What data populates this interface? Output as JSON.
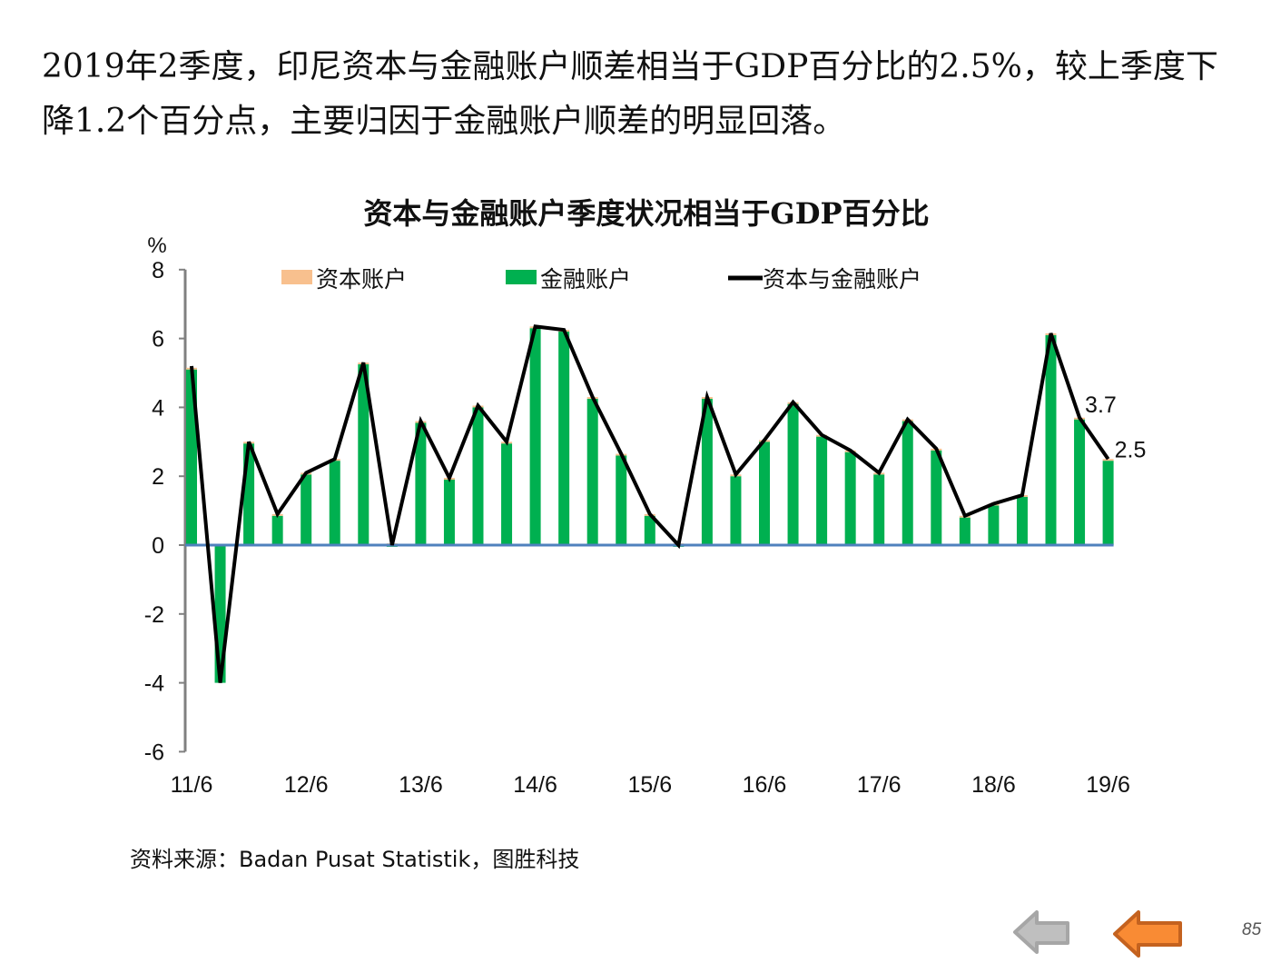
{
  "headline": "2019年2季度，印尼资本与金融账户顺差相当于GDP百分比的2.5%，较上季度下降1.2个百分点，主要归因于金融账户顺差的明显回落。",
  "source": "资料来源：Badan Pusat Statistik，图胜科技",
  "page_number": "85",
  "nav": {
    "prev_icon": "arrow-left-gray-icon",
    "back_icon": "arrow-left-orange-icon"
  },
  "colors": {
    "capital": "#F8C08E",
    "financial": "#00B050",
    "total": "#000000",
    "zero_line": "#4F81BD",
    "axis": "#808080"
  },
  "chart_data": {
    "type": "bar+line",
    "title": "资本与金融账户季度状况相当于GDP百分比",
    "ylabel": "%",
    "ylim": [
      -6,
      8
    ],
    "yticks": [
      8,
      6,
      4,
      2,
      0,
      -2,
      -4,
      -6
    ],
    "x_tick_labels": [
      "11/6",
      "12/6",
      "13/6",
      "14/6",
      "15/6",
      "16/6",
      "17/6",
      "18/6",
      "19/6"
    ],
    "categories": [
      "11/6",
      "11/9",
      "11/12",
      "12/3",
      "12/6",
      "12/9",
      "12/12",
      "13/3",
      "13/6",
      "13/9",
      "13/12",
      "14/3",
      "14/6",
      "14/9",
      "14/12",
      "15/3",
      "15/6",
      "15/9",
      "15/12",
      "16/3",
      "16/6",
      "16/9",
      "16/12",
      "17/3",
      "17/6",
      "17/9",
      "17/12",
      "18/3",
      "18/6",
      "18/9",
      "18/12",
      "19/3",
      "19/6"
    ],
    "legend_placement": "top",
    "series": [
      {
        "name": "资本账户",
        "kind": "stacked-bar",
        "values": [
          0.05,
          0.0,
          0.05,
          0.05,
          0.05,
          0.05,
          0.05,
          0.05,
          0.05,
          0.05,
          0.05,
          0.05,
          0.05,
          0.05,
          0.05,
          0.05,
          0.05,
          0.05,
          0.05,
          0.05,
          0.05,
          0.05,
          0.05,
          0.05,
          0.05,
          0.05,
          0.05,
          0.05,
          0.05,
          0.05,
          0.05,
          0.05,
          0.05
        ]
      },
      {
        "name": "金融账户",
        "kind": "stacked-bar",
        "values": [
          5.1,
          -4.0,
          2.95,
          0.85,
          2.05,
          2.45,
          5.25,
          -0.05,
          3.55,
          1.9,
          4.0,
          2.95,
          6.3,
          6.2,
          4.25,
          2.6,
          0.85,
          -0.05,
          4.25,
          2.0,
          3.0,
          4.1,
          3.15,
          2.7,
          2.05,
          3.6,
          2.75,
          0.8,
          1.15,
          1.4,
          6.1,
          3.65,
          2.45
        ]
      },
      {
        "name": "资本与金融账户",
        "kind": "line",
        "values": [
          5.2,
          -4.0,
          3.0,
          0.9,
          2.1,
          2.5,
          5.3,
          0.0,
          3.6,
          1.95,
          4.05,
          3.0,
          6.35,
          6.25,
          4.3,
          2.65,
          0.9,
          0.0,
          4.3,
          2.05,
          3.05,
          4.15,
          3.2,
          2.75,
          2.1,
          3.65,
          2.8,
          0.85,
          1.2,
          1.45,
          6.15,
          3.7,
          2.5
        ]
      }
    ],
    "annotations": [
      "3.7",
      "2.5"
    ]
  }
}
